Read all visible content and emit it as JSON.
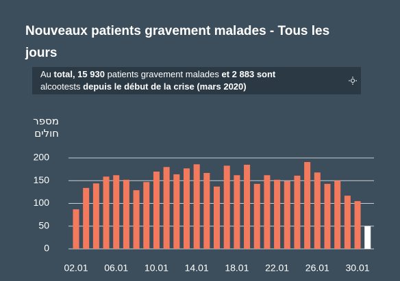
{
  "chart_data": {
    "type": "bar",
    "title": "Nouveaux patients gravement malades - Tous les jours",
    "subtitle_lines": [
      [
        {
          "text": "Au ",
          "bold": false
        },
        {
          "text": "total, 15 930",
          "bold": true
        },
        {
          "text": " patients gravement malades ",
          "bold": false
        },
        {
          "text": "et 2 883 sont",
          "bold": true
        }
      ],
      [
        {
          "text": "alcootests ",
          "bold": false
        },
        {
          "text": "depuis le début de la crise (mars 2020)",
          "bold": true
        }
      ]
    ],
    "y_label": "מספר חולים",
    "categories": [
      "02.01",
      null,
      null,
      null,
      "06.01",
      null,
      null,
      null,
      "10.01",
      null,
      null,
      null,
      "14.01",
      null,
      null,
      null,
      "18.01",
      null,
      null,
      null,
      "22.01",
      null,
      null,
      null,
      "26.01",
      null,
      null,
      null,
      "30.01",
      null
    ],
    "values": [
      87,
      134,
      144,
      159,
      162,
      152,
      129,
      147,
      170,
      180,
      164,
      177,
      186,
      167,
      137,
      183,
      162,
      185,
      143,
      162,
      152,
      149,
      161,
      191,
      168,
      143,
      150,
      117,
      105,
      50
    ],
    "colors": [
      "#f47a5e",
      "#f47a5e",
      "#f47a5e",
      "#f47a5e",
      "#f47a5e",
      "#f47a5e",
      "#f47a5e",
      "#f47a5e",
      "#f47a5e",
      "#f47a5e",
      "#f47a5e",
      "#f47a5e",
      "#f47a5e",
      "#f47a5e",
      "#f47a5e",
      "#f47a5e",
      "#f47a5e",
      "#f47a5e",
      "#f47a5e",
      "#f47a5e",
      "#f47a5e",
      "#f47a5e",
      "#f47a5e",
      "#f47a5e",
      "#f47a5e",
      "#f47a5e",
      "#f47a5e",
      "#f47a5e",
      "#f47a5e",
      "#ffffff"
    ],
    "ylim": [
      0,
      200
    ],
    "yticks": [
      0,
      50,
      100,
      150,
      200
    ],
    "grid": true
  }
}
